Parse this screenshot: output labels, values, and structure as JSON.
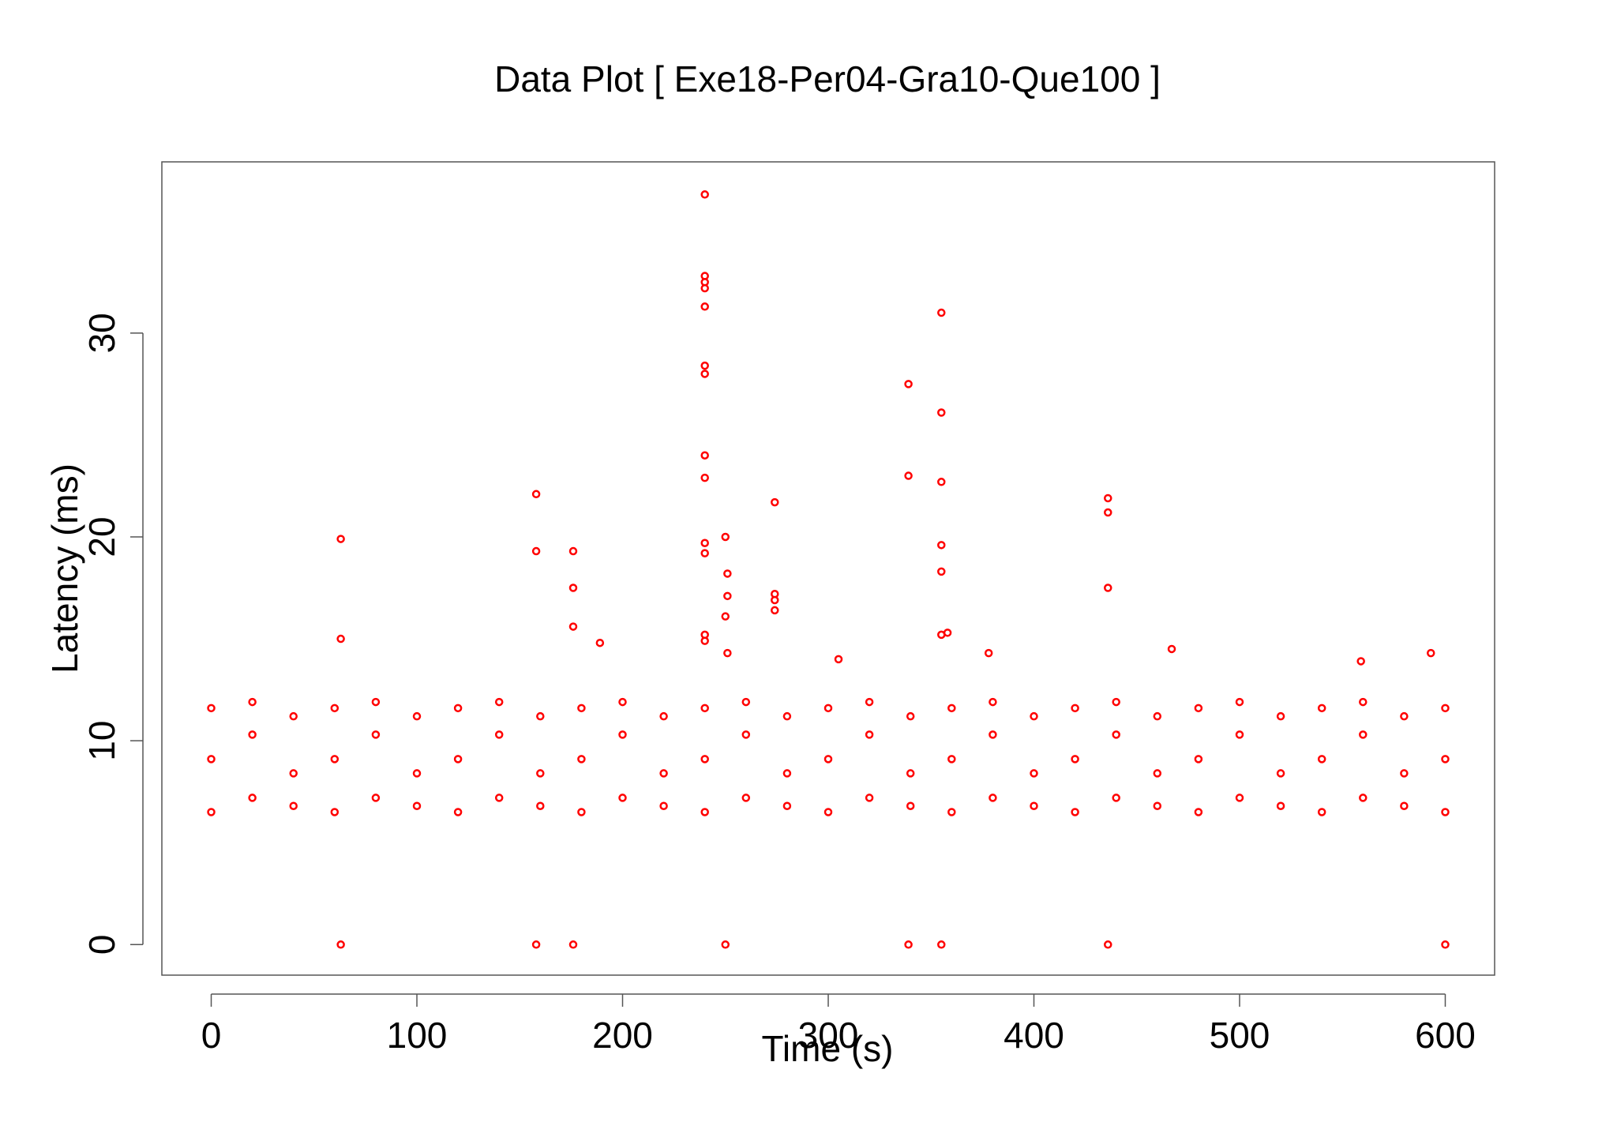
{
  "chart_data": {
    "type": "scatter",
    "title": "Data Plot [ Exe18-Per04-Gra10-Que100 ]",
    "x_label": "Time (s)",
    "y_label": "Latency (ms)",
    "color": "#ff0000",
    "xlim": [
      -24,
      624
    ],
    "xticks": [
      0,
      100,
      200,
      300,
      400,
      500,
      600
    ],
    "ylim": [
      -1.5,
      38.4
    ],
    "yticks": [
      0,
      10,
      20,
      30
    ],
    "x": [
      63,
      63,
      63,
      158,
      158,
      158,
      176,
      176,
      176,
      176,
      240,
      240,
      240,
      240,
      240,
      240,
      240,
      240,
      240,
      240,
      240,
      240,
      240,
      250,
      251,
      251,
      250,
      251,
      250,
      274,
      274,
      274,
      274,
      339,
      339,
      339,
      355,
      355,
      355,
      355,
      355,
      355,
      358,
      355,
      436,
      436,
      436,
      436,
      600,
      593,
      559,
      467,
      305,
      378,
      189,
      0,
      0,
      0,
      20,
      20,
      20,
      40,
      40,
      40,
      60,
      60,
      60,
      80,
      80,
      80,
      100,
      100,
      100,
      120,
      120,
      120,
      140,
      140,
      140,
      160,
      160,
      160,
      180,
      180,
      180,
      200,
      200,
      200,
      220,
      220,
      220,
      240,
      240,
      240,
      260,
      260,
      260,
      280,
      280,
      280,
      300,
      300,
      300,
      320,
      320,
      320,
      340,
      340,
      340,
      360,
      360,
      360,
      380,
      380,
      380,
      400,
      400,
      400,
      420,
      420,
      420,
      440,
      440,
      440,
      460,
      460,
      460,
      480,
      480,
      480,
      500,
      500,
      500,
      520,
      520,
      520,
      540,
      540,
      540,
      560,
      560,
      560,
      580,
      580,
      580,
      600,
      600,
      600
    ],
    "values": [
      19.9,
      15,
      0,
      22.1,
      19.3,
      0,
      19.3,
      17.5,
      15.6,
      0,
      36.8,
      32.8,
      32.5,
      32.2,
      31.3,
      28.4,
      28,
      24,
      22.9,
      19.7,
      19.2,
      15.2,
      14.9,
      20,
      18.2,
      17.1,
      16.1,
      14.3,
      0,
      21.7,
      17.2,
      16.9,
      16.4,
      27.5,
      23,
      0,
      31,
      26.1,
      22.7,
      19.6,
      18.3,
      15.2,
      15.3,
      0,
      21.9,
      21.2,
      17.5,
      0,
      0,
      14.3,
      13.9,
      14.5,
      14,
      14.3,
      14.8,
      6.5,
      9.1,
      11.6,
      7.2,
      10.3,
      11.9,
      6.8,
      8.4,
      11.2,
      6.5,
      9.1,
      11.6,
      7.2,
      10.3,
      11.9,
      6.8,
      8.4,
      11.2,
      6.5,
      9.1,
      11.6,
      7.2,
      10.3,
      11.9,
      6.8,
      8.4,
      11.2,
      6.5,
      9.1,
      11.6,
      7.2,
      10.3,
      11.9,
      6.8,
      8.4,
      11.2,
      6.5,
      9.1,
      11.6,
      7.2,
      10.3,
      11.9,
      6.8,
      8.4,
      11.2,
      6.5,
      9.1,
      11.6,
      7.2,
      10.3,
      11.9,
      6.8,
      8.4,
      11.2,
      6.5,
      9.1,
      11.6,
      7.2,
      10.3,
      11.9,
      6.8,
      8.4,
      11.2,
      6.5,
      9.1,
      11.6,
      7.2,
      10.3,
      11.9,
      6.8,
      8.4,
      11.2,
      6.5,
      9.1,
      11.6,
      7.2,
      10.3,
      11.9,
      6.8,
      8.4,
      11.2,
      6.5,
      9.1,
      11.6,
      7.2,
      10.3,
      11.9,
      6.8,
      8.4,
      11.2,
      6.5,
      9.1,
      11.6
    ]
  }
}
